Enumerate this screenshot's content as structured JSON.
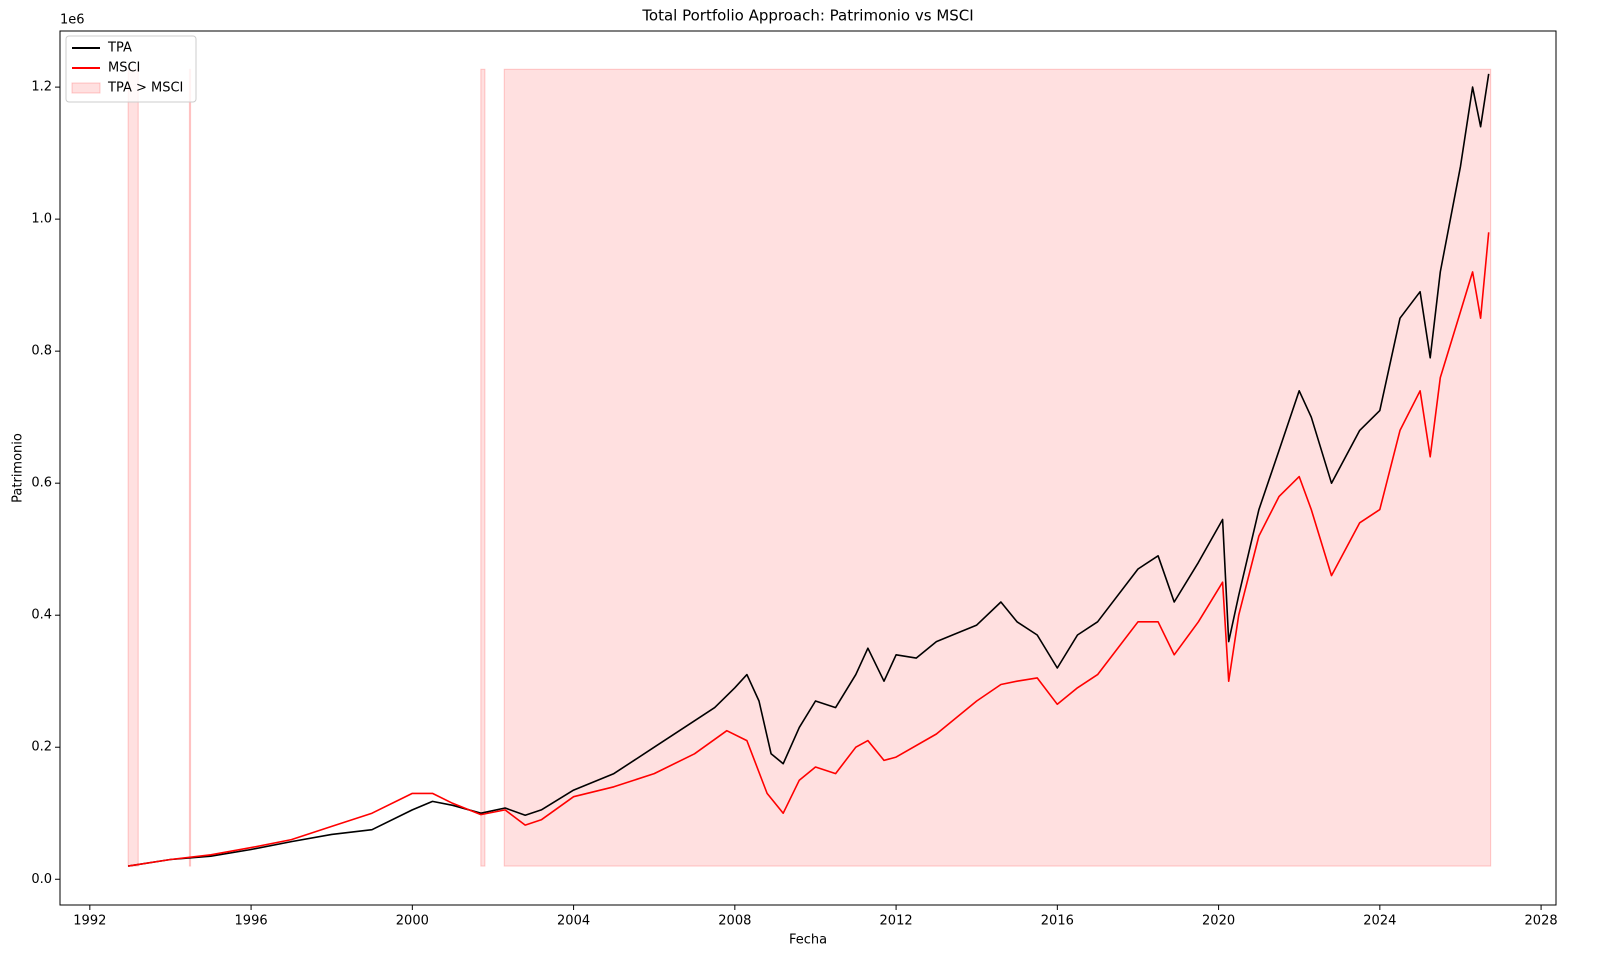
{
  "chart_data": {
    "type": "line",
    "title": "Total Portfolio Approach: Patrimonio vs MSCI",
    "x_label": "Fecha",
    "y_label": "Patrimonio",
    "y_offset_label": "1e6",
    "xlim": [
      1991.26,
      2028.37
    ],
    "ylim": [
      -39000,
      1285000
    ],
    "xticks": [
      1992,
      1996,
      2000,
      2004,
      2008,
      2012,
      2016,
      2020,
      2024,
      2028
    ],
    "yticks": [
      {
        "value": 0,
        "label": "0.0"
      },
      {
        "value": 200000,
        "label": "0.2"
      },
      {
        "value": 400000,
        "label": "0.4"
      },
      {
        "value": 600000,
        "label": "0.6"
      },
      {
        "value": 800000,
        "label": "0.8"
      },
      {
        "value": 1000000,
        "label": "1.0"
      },
      {
        "value": 1200000,
        "label": "1.2"
      }
    ],
    "legend": "upper left",
    "series": [
      {
        "name": "TPA",
        "color": "#000000",
        "x": [
          1992.95,
          1994,
          1995,
          1996,
          1997,
          1998,
          1999,
          2000,
          2000.5,
          2001,
          2001.7,
          2002.3,
          2002.8,
          2003.2,
          2004,
          2005,
          2006,
          2007,
          2007.5,
          2008,
          2008.3,
          2008.6,
          2008.9,
          2009.2,
          2009.6,
          2010,
          2010.5,
          2011,
          2011.3,
          2011.7,
          2012,
          2012.5,
          2013,
          2014,
          2014.6,
          2015,
          2015.5,
          2016,
          2016.5,
          2017,
          2018,
          2018.5,
          2018.9,
          2019.5,
          2020.1,
          2020.25,
          2020.5,
          2021,
          2021.5,
          2022,
          2022.3,
          2022.8,
          2023.5,
          2024,
          2024.5,
          2025,
          2025.25,
          2025.5,
          2026,
          2026.3,
          2026.5,
          2026.7
        ],
        "values": [
          20000,
          30000,
          35000,
          45000,
          57000,
          68000,
          75000,
          105000,
          118000,
          112000,
          100000,
          108000,
          97000,
          105000,
          135000,
          160000,
          200000,
          240000,
          260000,
          290000,
          310000,
          270000,
          190000,
          175000,
          230000,
          270000,
          260000,
          310000,
          350000,
          300000,
          340000,
          335000,
          360000,
          385000,
          420000,
          390000,
          370000,
          320000,
          370000,
          390000,
          470000,
          490000,
          420000,
          480000,
          545000,
          360000,
          430000,
          560000,
          650000,
          740000,
          700000,
          600000,
          680000,
          710000,
          850000,
          890000,
          790000,
          920000,
          1080000,
          1200000,
          1140000,
          1220000
        ]
      },
      {
        "name": "MSCI",
        "color": "#ff0000",
        "x": [
          1992.95,
          1994,
          1995,
          1996,
          1997,
          1998,
          1999,
          2000,
          2000.5,
          2001,
          2001.7,
          2002.3,
          2002.8,
          2003.2,
          2004,
          2005,
          2006,
          2007,
          2007.8,
          2008.3,
          2008.8,
          2009.2,
          2009.6,
          2010,
          2010.5,
          2011,
          2011.3,
          2011.7,
          2012,
          2013,
          2014,
          2014.6,
          2015,
          2015.5,
          2016,
          2016.5,
          2017,
          2018,
          2018.5,
          2018.9,
          2019.5,
          2020.1,
          2020.25,
          2020.5,
          2021,
          2021.5,
          2022,
          2022.3,
          2022.8,
          2023.5,
          2024,
          2024.5,
          2025,
          2025.25,
          2025.5,
          2026,
          2026.3,
          2026.5,
          2026.7
        ],
        "values": [
          20000,
          30000,
          37000,
          48000,
          60000,
          80000,
          100000,
          130000,
          130000,
          115000,
          98000,
          105000,
          82000,
          90000,
          125000,
          140000,
          160000,
          190000,
          225000,
          210000,
          130000,
          100000,
          150000,
          170000,
          160000,
          200000,
          210000,
          180000,
          185000,
          220000,
          270000,
          295000,
          300000,
          305000,
          265000,
          290000,
          310000,
          390000,
          390000,
          340000,
          390000,
          450000,
          300000,
          400000,
          520000,
          580000,
          610000,
          560000,
          460000,
          540000,
          560000,
          680000,
          740000,
          640000,
          760000,
          860000,
          920000,
          850000,
          980000
        ]
      }
    ],
    "shade": {
      "name": "TPA > MSCI",
      "color": "#ff0000",
      "ymin": 20000,
      "ymax": 1227000,
      "starts": [
        1992.95,
        1994.47,
        2001.7,
        2002.28
      ],
      "ends": [
        1993.2,
        1994.5,
        2001.8,
        2026.75
      ]
    }
  }
}
